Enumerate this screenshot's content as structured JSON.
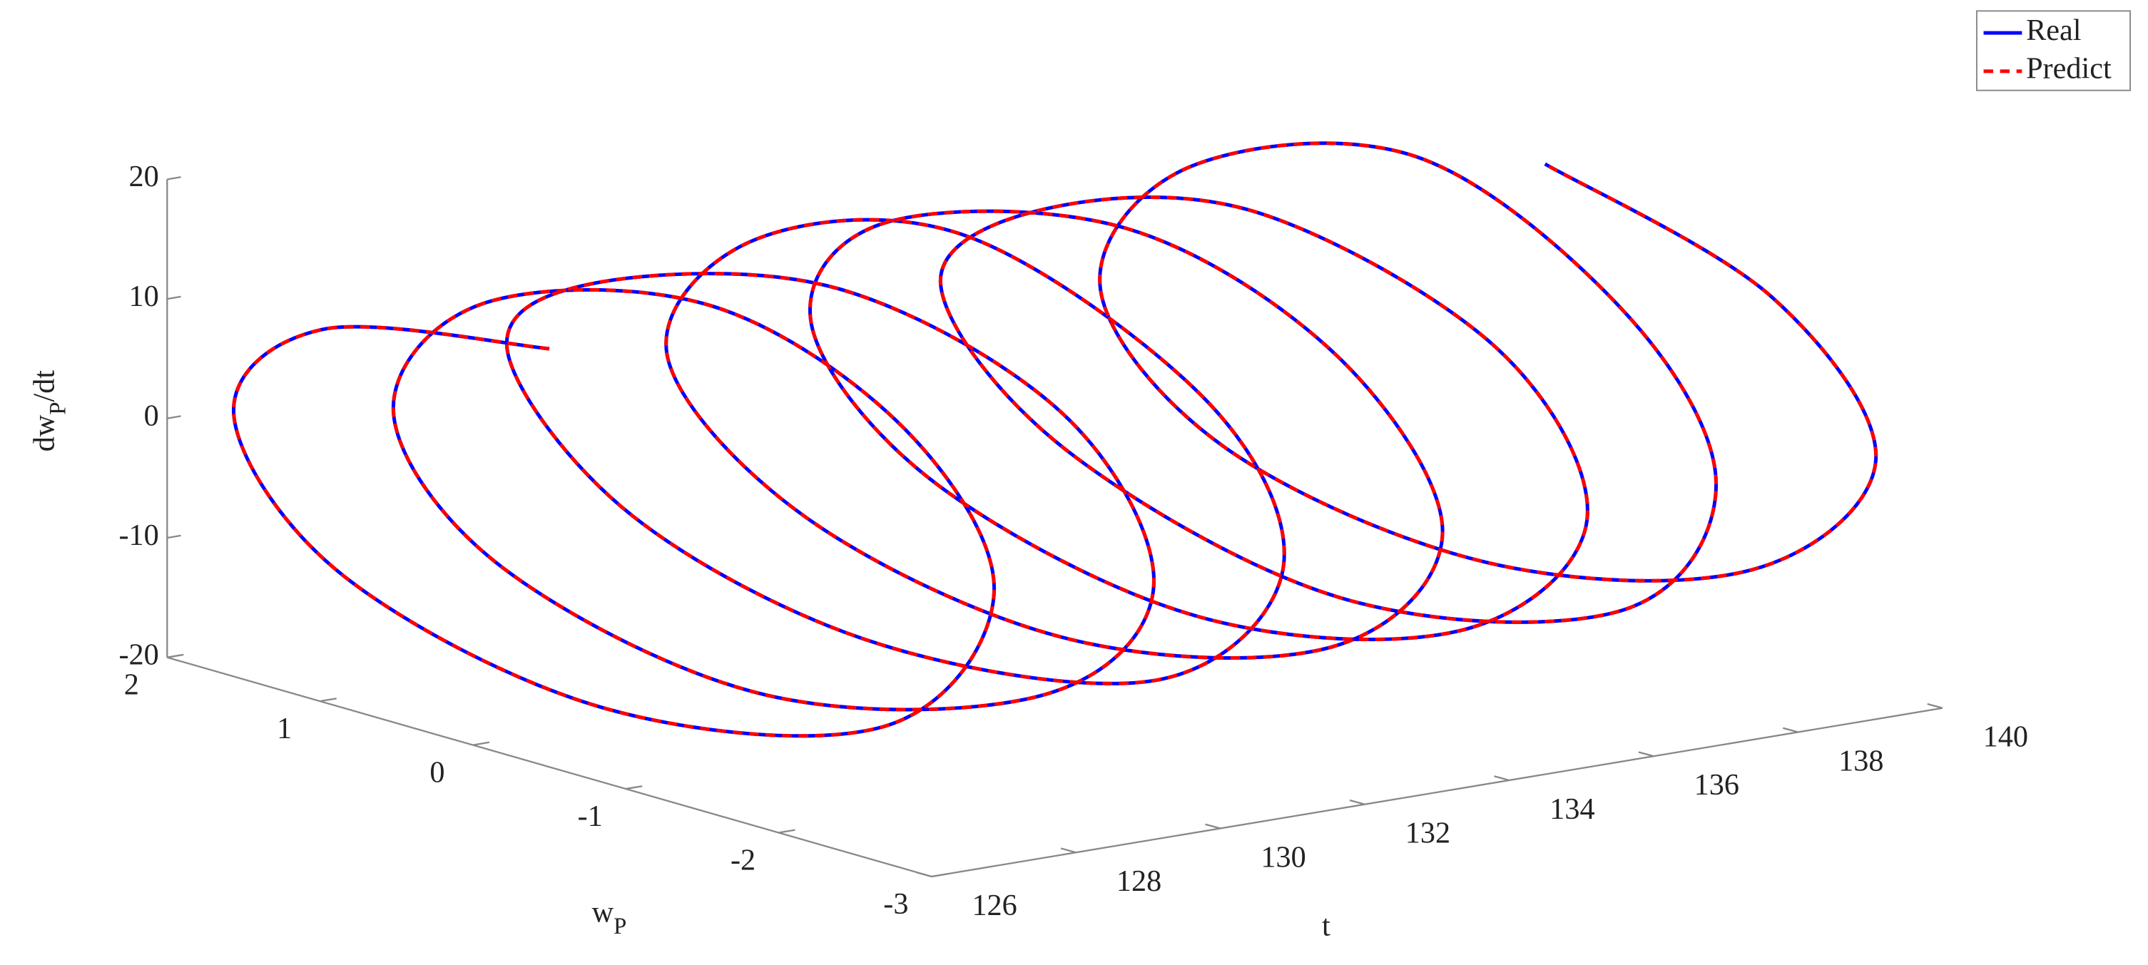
{
  "chart_data": {
    "type": "line3d",
    "xlabel": "t",
    "ylabel": {
      "base": "w",
      "sub": "P"
    },
    "zlabel": {
      "base": "dw",
      "sub": "P",
      "rest": "/dt"
    },
    "xlim": [
      126,
      140
    ],
    "xticks": [
      126,
      128,
      130,
      132,
      134,
      136,
      138,
      140
    ],
    "ylim": [
      2,
      -3
    ],
    "yticks": [
      2,
      1,
      0,
      -1,
      -2,
      -3
    ],
    "zlim": [
      -20,
      20
    ],
    "zticks": [
      -20,
      -10,
      0,
      10,
      20
    ],
    "legend": "top-right",
    "x": [
      126,
      126.25,
      126.5,
      126.75,
      127,
      127.25,
      127.5,
      127.75,
      128,
      128.25,
      128.5,
      128.75,
      129,
      129.25,
      129.5,
      129.75,
      130,
      130.25,
      130.5,
      130.75,
      131,
      131.25,
      131.5,
      131.75,
      132,
      132.25,
      132.5,
      132.75,
      133,
      133.25,
      133.5,
      133.75,
      134,
      134.25,
      134.5,
      134.75,
      135,
      135.25,
      135.5,
      135.75,
      136,
      136.25,
      136.5,
      136.75,
      137,
      137.25,
      137.5,
      137.75,
      138,
      138.25,
      138.5,
      138.75,
      139,
      139.25,
      139.5,
      139.75,
      140
    ],
    "series": [
      {
        "name": "Real",
        "color": "#0000ff",
        "dash": false,
        "w": [
          -0.5,
          1.1,
          1.8,
          1.2,
          -0.4,
          -2.1,
          -2.7,
          -2.0,
          -0.6,
          1.0,
          1.7,
          1.1,
          -0.5,
          -2.2,
          -2.8,
          -2.1,
          -0.5,
          1.2,
          1.9,
          1.2,
          -0.3,
          -2.0,
          -2.7,
          -2.1,
          -0.4,
          1.1,
          1.8,
          1.0,
          -0.6,
          -2.2,
          -2.8,
          -2.0,
          -0.5,
          1.2,
          1.8,
          1.1,
          -0.5,
          -2.1,
          -2.8,
          -2.1,
          -0.4,
          1.1,
          1.9,
          1.2,
          -0.5,
          -2.2,
          -2.7,
          -2.0,
          -0.5,
          1.1,
          1.8,
          1.1,
          -0.5,
          -2.1,
          -2.8,
          -2.0,
          -0.4
        ],
        "values": [
          15,
          10.5,
          0.5,
          -11,
          -16.5,
          -12,
          1,
          12,
          17,
          11,
          -1,
          -12,
          -17,
          -11,
          0,
          11.5,
          16,
          10,
          1.5,
          -10,
          -15.5,
          -12.5,
          -1,
          10.5,
          18,
          12,
          -0.5,
          -11.5,
          -16,
          -11,
          0.5,
          12,
          17,
          11,
          0,
          -11,
          -16.5,
          -12,
          -0.5,
          11,
          16,
          10.5,
          1,
          -10.5,
          -17,
          -12,
          0,
          11.5,
          19,
          12,
          -1,
          -12,
          -16,
          -11,
          0.5,
          11,
          16
        ]
      },
      {
        "name": "Predict",
        "color": "#ff0000",
        "dash": true,
        "w": [
          -0.5,
          1.1,
          1.8,
          1.2,
          -0.4,
          -2.1,
          -2.7,
          -2.0,
          -0.6,
          1.0,
          1.7,
          1.1,
          -0.5,
          -2.2,
          -2.8,
          -2.1,
          -0.5,
          1.2,
          1.9,
          1.2,
          -0.3,
          -2.0,
          -2.7,
          -2.1,
          -0.4,
          1.1,
          1.8,
          1.0,
          -0.6,
          -2.2,
          -2.8,
          -2.0,
          -0.5,
          1.2,
          1.8,
          1.1,
          -0.5,
          -2.1,
          -2.8,
          -2.1,
          -0.4,
          1.1,
          1.9,
          1.2,
          -0.5,
          -2.2,
          -2.7,
          -2.0,
          -0.5,
          1.1,
          1.8,
          1.1,
          -0.5,
          -2.1,
          -2.8,
          -2.0,
          -0.4
        ],
        "values": [
          15,
          10.5,
          0.5,
          -11,
          -16.5,
          -12,
          1,
          12,
          17,
          11,
          -1,
          -12,
          -17,
          -11,
          0,
          11.5,
          16,
          10,
          1.5,
          -10,
          -15.5,
          -12.5,
          -1,
          10.5,
          18,
          12,
          -0.5,
          -11.5,
          -16,
          -11,
          0.5,
          12,
          17,
          11,
          0,
          -11,
          -16.5,
          -12,
          -0.5,
          11,
          16,
          10.5,
          1,
          -10.5,
          -17,
          -12,
          0,
          11.5,
          19,
          12,
          -1,
          -12,
          -16,
          -11,
          0.5,
          11,
          16
        ]
      }
    ]
  }
}
